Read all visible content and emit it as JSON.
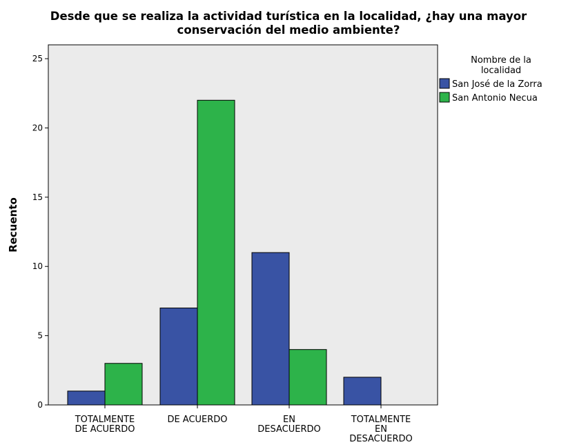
{
  "chart_data": {
    "type": "bar",
    "title_line1": "Desde que se realiza la actividad turística en la localidad, ¿hay una mayor",
    "title_line2": "conservación del medio ambiente?",
    "xlabel": "",
    "ylabel": "Recuento",
    "ylim": [
      0,
      26
    ],
    "yticks": [
      0,
      5,
      10,
      15,
      20,
      25
    ],
    "categories": [
      [
        "TOTALMENTE",
        "DE ACUERDO"
      ],
      [
        "DE ACUERDO"
      ],
      [
        "EN",
        "DESACUERDO"
      ],
      [
        "TOTALMENTE",
        "EN",
        "DESACUERDO"
      ]
    ],
    "legend": {
      "title_line1": "Nombre de la",
      "title_line2": "localidad",
      "position": "right"
    },
    "series": [
      {
        "name": "San José de la Zorra",
        "color": "#3953a4",
        "values": [
          1,
          7,
          11,
          2
        ]
      },
      {
        "name": "San Antonio Necua",
        "color": "#2db34a",
        "values": [
          3,
          22,
          4,
          0
        ]
      }
    ],
    "plot_background": "#ebebeb",
    "grid": false
  }
}
